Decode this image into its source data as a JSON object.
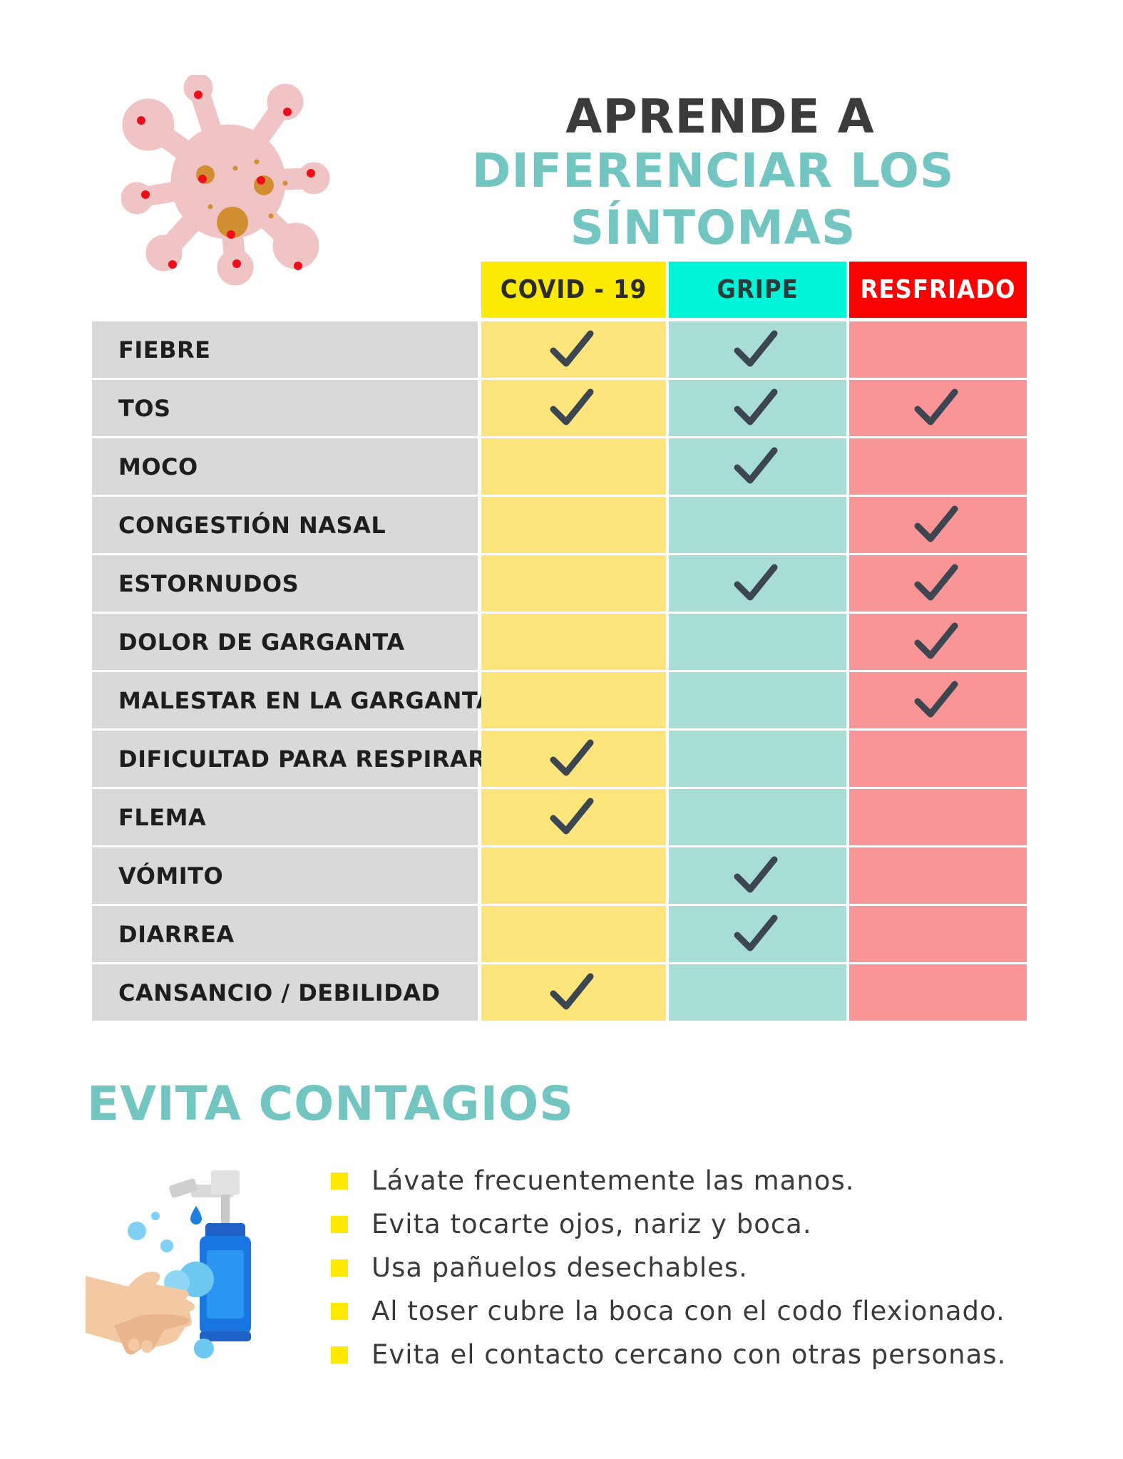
{
  "header": {
    "line1": "APRENDE A",
    "line2": "DIFERENCIAR LOS SÍNTOMAS"
  },
  "table": {
    "columns": [
      {
        "label": "COVID - 19",
        "head_bg": "#fdea02",
        "head_color": "#2b2b2b",
        "cell_bg": "#fde57c"
      },
      {
        "label": "GRIPE",
        "head_bg": "#00f5d8",
        "head_color": "#2b3b3b",
        "cell_bg": "#a8ddd6"
      },
      {
        "label": "RESFRIADO",
        "head_bg": "#fb0202",
        "head_color": "#ffffff",
        "cell_bg": "#f99596"
      }
    ],
    "rows": [
      {
        "symptom": "FIEBRE",
        "checks": [
          true,
          true,
          false
        ]
      },
      {
        "symptom": "TOS",
        "checks": [
          true,
          true,
          true
        ]
      },
      {
        "symptom": "MOCO",
        "checks": [
          false,
          true,
          false
        ]
      },
      {
        "symptom": "CONGESTIÓN NASAL",
        "checks": [
          false,
          false,
          true
        ]
      },
      {
        "symptom": "ESTORNUDOS",
        "checks": [
          false,
          true,
          true
        ]
      },
      {
        "symptom": "DOLOR DE GARGANTA",
        "checks": [
          false,
          false,
          true
        ]
      },
      {
        "symptom": "MALESTAR EN LA GARGANTA",
        "checks": [
          false,
          false,
          true
        ]
      },
      {
        "symptom": "DIFICULTAD PARA RESPIRAR",
        "checks": [
          true,
          false,
          false
        ]
      },
      {
        "symptom": "FLEMA",
        "checks": [
          true,
          false,
          false
        ]
      },
      {
        "symptom": "VÓMITO",
        "checks": [
          false,
          true,
          false
        ]
      },
      {
        "symptom": "DIARREA",
        "checks": [
          false,
          true,
          false
        ]
      },
      {
        "symptom": "CANSANCIO / DEBILIDAD",
        "checks": [
          true,
          false,
          false
        ]
      }
    ],
    "check_icon": "checkmark-icon",
    "check_color": "#3b4650"
  },
  "prevention": {
    "title": "EVITA CONTAGIOS",
    "tips": [
      "Lávate frecuentemente las manos.",
      "Evita tocarte ojos, nariz y boca.",
      "Usa pañuelos desechables.",
      "Al toser cubre la boca con el codo flexionado.",
      "Evita el contacto cercano con otras personas."
    ],
    "bullet_color": "#fde900"
  },
  "accent_color": "#72c5c0",
  "illustrations": [
    "virus-icon",
    "hand-washing-icon"
  ]
}
